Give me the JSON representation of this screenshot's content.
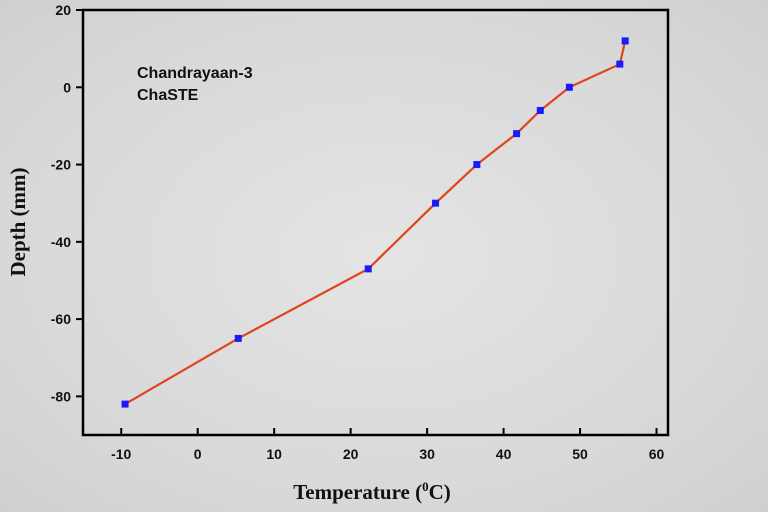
{
  "chart_data": {
    "type": "line",
    "title": "",
    "annotation": [
      "Chandrayaan-3",
      "ChaSTE"
    ],
    "xlabel": "Temperature (",
    "xlabel_sup": "0",
    "xlabel_unit": "C)",
    "ylabel": "Depth (mm)",
    "xlim": [
      -15,
      61.5
    ],
    "ylim": [
      -90,
      20
    ],
    "xticks": [
      -10,
      0,
      10,
      20,
      30,
      40,
      50,
      60
    ],
    "yticks": [
      -80,
      -60,
      -40,
      -20,
      0,
      20
    ],
    "grid": false,
    "line_color": "#e0441a",
    "marker_color": "#1a1aff",
    "x": [
      -9.5,
      5.3,
      22.3,
      31.1,
      36.5,
      41.7,
      44.8,
      48.6,
      55.2,
      55.9
    ],
    "y": [
      -82,
      -65,
      -47,
      -30,
      -20,
      -12,
      -6,
      0,
      6,
      12
    ]
  }
}
